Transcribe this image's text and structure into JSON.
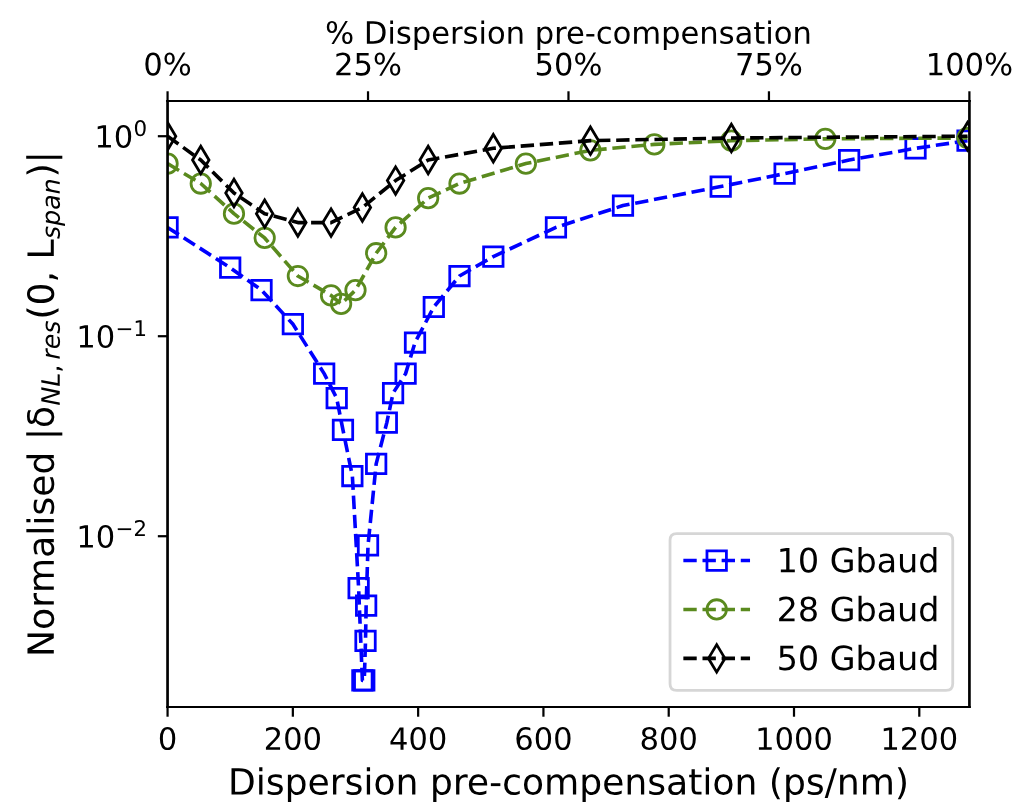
{
  "chart_data": {
    "type": "line",
    "xlabel": "Dispersion pre-compensation (ps/nm)",
    "ylabel": "Normalised |δ$_{NL,res}$(0, L$_{span}$)|",
    "x2label": "% Dispersion pre-compensation",
    "xlim": [
      0,
      1280
    ],
    "xticks": [
      0,
      200,
      400,
      600,
      800,
      1000,
      1200
    ],
    "x2lim": [
      0,
      100
    ],
    "x2ticks": [
      {
        "value": 0,
        "label": "0%"
      },
      {
        "value": 25,
        "label": "25%"
      },
      {
        "value": 50,
        "label": "50%"
      },
      {
        "value": 75,
        "label": "75%"
      },
      {
        "value": 100,
        "label": "100%"
      }
    ],
    "ylim": [
      0.0014,
      1.5
    ],
    "yticks": [
      {
        "value": 0.01,
        "label": "10$^{−2}$"
      },
      {
        "value": 0.1,
        "label": "10$^{−1}$"
      },
      {
        "value": 1,
        "label": "10$^{0}$"
      }
    ],
    "log": "y",
    "grid": false,
    "legend": "bottom right",
    "line_style": "dashed",
    "series": [
      {
        "name": "10 Gbaud",
        "color": "#0000ff",
        "marker": "square",
        "x": [
          0,
          100,
          150,
          200,
          250,
          270,
          280,
          295,
          305,
          311,
          314,
          316,
          317,
          320,
          333,
          350,
          360,
          380,
          395,
          425,
          466,
          520,
          620,
          727,
          883,
          985,
          1088,
          1194,
          1277
        ],
        "values": [
          0.35,
          0.22,
          0.17,
          0.115,
          0.065,
          0.049,
          0.034,
          0.02,
          0.0055,
          0.0019,
          0.0019,
          0.003,
          0.0045,
          0.009,
          0.023,
          0.037,
          0.052,
          0.065,
          0.093,
          0.14,
          0.2,
          0.25,
          0.35,
          0.45,
          0.56,
          0.65,
          0.76,
          0.87,
          0.95
        ]
      },
      {
        "name": "28 Gbaud",
        "color": "#5a8a1e",
        "marker": "circle",
        "x": [
          0,
          53,
          106,
          155,
          208,
          261,
          277,
          300,
          333,
          364,
          416,
          466,
          572,
          675,
          777,
          900,
          1050,
          1277
        ],
        "values": [
          0.73,
          0.58,
          0.41,
          0.31,
          0.2,
          0.16,
          0.145,
          0.17,
          0.26,
          0.35,
          0.49,
          0.58,
          0.73,
          0.85,
          0.91,
          0.95,
          0.97,
          0.98
        ]
      },
      {
        "name": "50 Gbaud",
        "color": "#000000",
        "marker": "diamond",
        "x": [
          0,
          53,
          106,
          155,
          208,
          261,
          311,
          364,
          416,
          520,
          675,
          900,
          1277
        ],
        "values": [
          1.0,
          0.76,
          0.52,
          0.41,
          0.37,
          0.37,
          0.44,
          0.6,
          0.76,
          0.87,
          0.95,
          0.98,
          1.0
        ]
      }
    ]
  }
}
